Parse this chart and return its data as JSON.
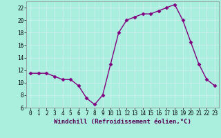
{
  "x": [
    0,
    1,
    2,
    3,
    4,
    5,
    6,
    7,
    8,
    9,
    10,
    11,
    12,
    13,
    14,
    15,
    16,
    17,
    18,
    19,
    20,
    21,
    22,
    23
  ],
  "y": [
    11.5,
    11.5,
    11.5,
    11.0,
    10.5,
    10.5,
    9.5,
    7.5,
    6.5,
    8.0,
    13.0,
    18.0,
    20.0,
    20.5,
    21.0,
    21.0,
    21.5,
    22.0,
    22.5,
    20.0,
    16.5,
    13.0,
    10.5,
    9.5
  ],
  "color": "#800080",
  "bg_color": "#aaeedd",
  "grid_color": "#cceeee",
  "xlabel": "Windchill (Refroidissement éolien,°C)",
  "ylim": [
    6,
    23
  ],
  "xlim": [
    -0.5,
    23.5
  ],
  "yticks": [
    6,
    8,
    10,
    12,
    14,
    16,
    18,
    20,
    22
  ],
  "xticks": [
    0,
    1,
    2,
    3,
    4,
    5,
    6,
    7,
    8,
    9,
    10,
    11,
    12,
    13,
    14,
    15,
    16,
    17,
    18,
    19,
    20,
    21,
    22,
    23
  ],
  "marker": "D",
  "markersize": 2.5,
  "linewidth": 1.0,
  "xlabel_fontsize": 6.5,
  "tick_fontsize": 5.5,
  "spine_color": "#888888"
}
